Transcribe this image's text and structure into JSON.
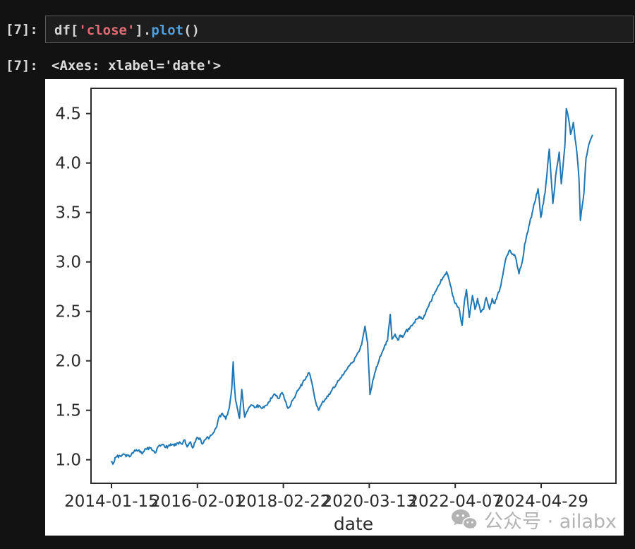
{
  "notebook": {
    "input_prompt": "[7]:",
    "output_prompt": "[7]:",
    "code_tokens": [
      {
        "text": "df",
        "type": "variable"
      },
      {
        "text": "[",
        "type": "bracket"
      },
      {
        "text": "'close'",
        "type": "string"
      },
      {
        "text": "]",
        "type": "bracket"
      },
      {
        "text": ".",
        "type": "punct"
      },
      {
        "text": "plot",
        "type": "function"
      },
      {
        "text": "()",
        "type": "punct"
      }
    ],
    "output_text": "<Axes: xlabel='date'>"
  },
  "watermark": {
    "icon": "wechat-icon",
    "text": "公众号 · ailabx"
  },
  "colors": {
    "page_bg": "#121212",
    "cell_bg": "#1d1d1d",
    "cell_border": "#5c5c5c",
    "prompt_text": "#d8d8d8",
    "output_text": "#dcdcdc",
    "figure_bg": "#ffffff",
    "axis_text": "#2b2b2b",
    "watermark_gray": "#b3b3b3",
    "tokens": {
      "variable": "#d4d4d4",
      "bracket": "#d4d4d4",
      "string": "#e06c75",
      "punct": "#d4d4d4",
      "function": "#4fa0dd"
    }
  },
  "chart_data": {
    "type": "line",
    "title": "",
    "xlabel": "date",
    "ylabel": "",
    "legend": null,
    "grid": false,
    "line_color": "#1f77b4",
    "x_tick_positions": [
      0,
      500,
      1000,
      1500,
      2000,
      2500
    ],
    "x_tick_labels": [
      "2014-01-15",
      "2016-02-01",
      "2018-02-22",
      "2020-03-13",
      "2022-04-07",
      "2024-04-29"
    ],
    "y_ticks": [
      1.0,
      1.5,
      2.0,
      2.5,
      3.0,
      3.5,
      4.0,
      4.5
    ],
    "xlim": [
      -119,
      2935
    ],
    "ylim": [
      0.762,
      4.755
    ],
    "series": [
      {
        "name": "close",
        "points": [
          [
            0,
            0.98
          ],
          [
            8,
            0.955
          ],
          [
            21,
            1.02
          ],
          [
            50,
            1.04
          ],
          [
            80,
            1.05
          ],
          [
            105,
            1.03
          ],
          [
            130,
            1.08
          ],
          [
            160,
            1.1
          ],
          [
            180,
            1.06
          ],
          [
            200,
            1.11
          ],
          [
            225,
            1.12
          ],
          [
            252,
            1.07
          ],
          [
            275,
            1.14
          ],
          [
            305,
            1.15
          ],
          [
            325,
            1.12
          ],
          [
            345,
            1.16
          ],
          [
            365,
            1.14
          ],
          [
            385,
            1.17
          ],
          [
            407,
            1.16
          ],
          [
            427,
            1.2
          ],
          [
            440,
            1.13
          ],
          [
            460,
            1.18
          ],
          [
            472,
            1.12
          ],
          [
            493,
            1.21
          ],
          [
            514,
            1.22
          ],
          [
            530,
            1.16
          ],
          [
            550,
            1.21
          ],
          [
            571,
            1.23
          ],
          [
            592,
            1.27
          ],
          [
            612,
            1.33
          ],
          [
            625,
            1.43
          ],
          [
            645,
            1.47
          ],
          [
            665,
            1.41
          ],
          [
            685,
            1.52
          ],
          [
            700,
            1.72
          ],
          [
            708,
            1.99
          ],
          [
            714,
            1.78
          ],
          [
            722,
            1.6
          ],
          [
            745,
            1.42
          ],
          [
            758,
            1.71
          ],
          [
            775,
            1.43
          ],
          [
            797,
            1.52
          ],
          [
            818,
            1.55
          ],
          [
            838,
            1.53
          ],
          [
            858,
            1.55
          ],
          [
            878,
            1.52
          ],
          [
            898,
            1.55
          ],
          [
            912,
            1.58
          ],
          [
            932,
            1.62
          ],
          [
            952,
            1.66
          ],
          [
            972,
            1.62
          ],
          [
            992,
            1.68
          ],
          [
            1010,
            1.6
          ],
          [
            1027,
            1.52
          ],
          [
            1044,
            1.56
          ],
          [
            1060,
            1.62
          ],
          [
            1077,
            1.68
          ],
          [
            1097,
            1.73
          ],
          [
            1117,
            1.8
          ],
          [
            1134,
            1.84
          ],
          [
            1150,
            1.88
          ],
          [
            1166,
            1.78
          ],
          [
            1183,
            1.62
          ],
          [
            1205,
            1.5
          ],
          [
            1224,
            1.57
          ],
          [
            1240,
            1.6
          ],
          [
            1260,
            1.64
          ],
          [
            1281,
            1.7
          ],
          [
            1302,
            1.74
          ],
          [
            1322,
            1.8
          ],
          [
            1343,
            1.86
          ],
          [
            1364,
            1.9
          ],
          [
            1384,
            1.95
          ],
          [
            1405,
            1.99
          ],
          [
            1425,
            2.05
          ],
          [
            1446,
            2.12
          ],
          [
            1459,
            2.2
          ],
          [
            1475,
            2.35
          ],
          [
            1490,
            2.18
          ],
          [
            1504,
            1.66
          ],
          [
            1520,
            1.8
          ],
          [
            1537,
            1.9
          ],
          [
            1556,
            2.0
          ],
          [
            1573,
            2.08
          ],
          [
            1590,
            2.16
          ],
          [
            1606,
            2.2
          ],
          [
            1622,
            2.47
          ],
          [
            1632,
            2.22
          ],
          [
            1650,
            2.27
          ],
          [
            1666,
            2.21
          ],
          [
            1680,
            2.26
          ],
          [
            1695,
            2.24
          ],
          [
            1712,
            2.3
          ],
          [
            1733,
            2.32
          ],
          [
            1754,
            2.37
          ],
          [
            1775,
            2.42
          ],
          [
            1790,
            2.45
          ],
          [
            1810,
            2.42
          ],
          [
            1835,
            2.52
          ],
          [
            1857,
            2.6
          ],
          [
            1877,
            2.67
          ],
          [
            1897,
            2.74
          ],
          [
            1918,
            2.82
          ],
          [
            1938,
            2.87
          ],
          [
            1950,
            2.9
          ],
          [
            1967,
            2.8
          ],
          [
            1985,
            2.66
          ],
          [
            2000,
            2.58
          ],
          [
            2020,
            2.54
          ],
          [
            2040,
            2.36
          ],
          [
            2055,
            2.62
          ],
          [
            2065,
            2.72
          ],
          [
            2082,
            2.44
          ],
          [
            2100,
            2.66
          ],
          [
            2115,
            2.52
          ],
          [
            2130,
            2.63
          ],
          [
            2148,
            2.49
          ],
          [
            2165,
            2.52
          ],
          [
            2180,
            2.64
          ],
          [
            2200,
            2.52
          ],
          [
            2215,
            2.63
          ],
          [
            2230,
            2.58
          ],
          [
            2245,
            2.66
          ],
          [
            2256,
            2.7
          ],
          [
            2276,
            2.86
          ],
          [
            2297,
            3.05
          ],
          [
            2317,
            3.12
          ],
          [
            2335,
            3.08
          ],
          [
            2350,
            3.05
          ],
          [
            2371,
            2.88
          ],
          [
            2392,
            3.02
          ],
          [
            2404,
            3.18
          ],
          [
            2433,
            3.39
          ],
          [
            2462,
            3.6
          ],
          [
            2482,
            3.74
          ],
          [
            2498,
            3.45
          ],
          [
            2523,
            3.7
          ],
          [
            2547,
            4.14
          ],
          [
            2568,
            3.59
          ],
          [
            2589,
            3.93
          ],
          [
            2605,
            4.11
          ],
          [
            2617,
            3.79
          ],
          [
            2638,
            4.17
          ],
          [
            2646,
            4.55
          ],
          [
            2662,
            4.42
          ],
          [
            2671,
            4.29
          ],
          [
            2687,
            4.41
          ],
          [
            2708,
            4.1
          ],
          [
            2720,
            3.84
          ],
          [
            2728,
            3.42
          ],
          [
            2749,
            3.7
          ],
          [
            2761,
            4.05
          ],
          [
            2782,
            4.21
          ],
          [
            2798,
            4.28
          ]
        ]
      }
    ]
  }
}
